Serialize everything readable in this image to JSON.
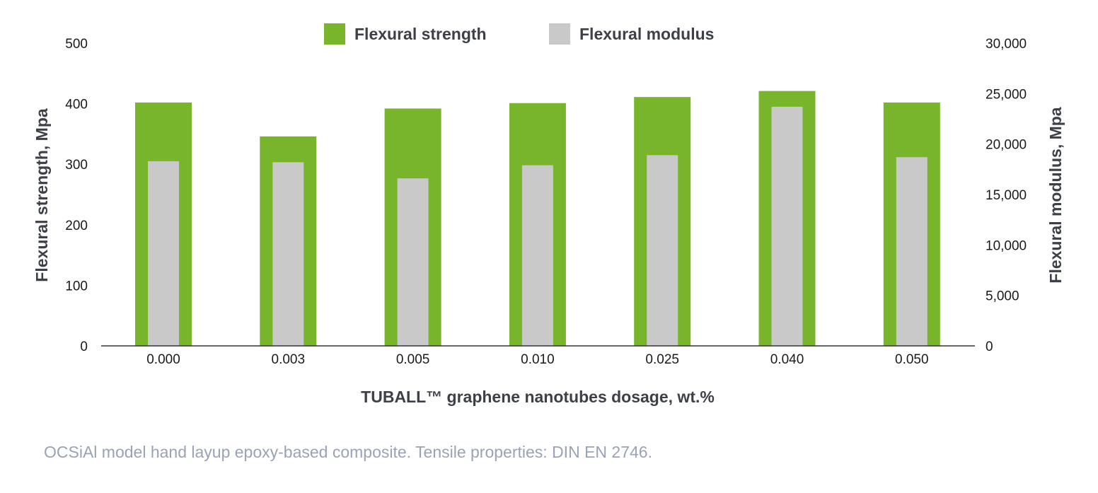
{
  "chart_data": {
    "type": "bar",
    "categories": [
      "0.000",
      "0.003",
      "0.005",
      "0.010",
      "0.025",
      "0.040",
      "0.050"
    ],
    "series": [
      {
        "name": "Flexural strength",
        "axis": "left",
        "color": "#78b52a",
        "values": [
          402,
          346,
          392,
          401,
          411,
          421,
          402
        ]
      },
      {
        "name": "Flexural modulus",
        "axis": "right",
        "color": "#c9c9c9",
        "values": [
          18300,
          18200,
          16600,
          17900,
          18900,
          23700,
          18700
        ]
      }
    ],
    "xlabel": "TUBALL™ graphene nanotubes dosage, wt.%",
    "ylabel_left": "Flexural strength, Mpa",
    "ylabel_right": "Flexural modulus, Mpa",
    "ylim_left": [
      0,
      500
    ],
    "ylim_right": [
      0,
      30000
    ],
    "yticks_left": [
      "0",
      "100",
      "200",
      "300",
      "400",
      "500"
    ],
    "yticks_right": [
      "0",
      "5,000",
      "10,000",
      "15,000",
      "20,000",
      "25,000",
      "30,000"
    ],
    "legend_position": "top-center",
    "grid": false
  },
  "footnote": "OCSiAl model hand layup epoxy-based composite. Tensile properties: DIN EN 2746."
}
